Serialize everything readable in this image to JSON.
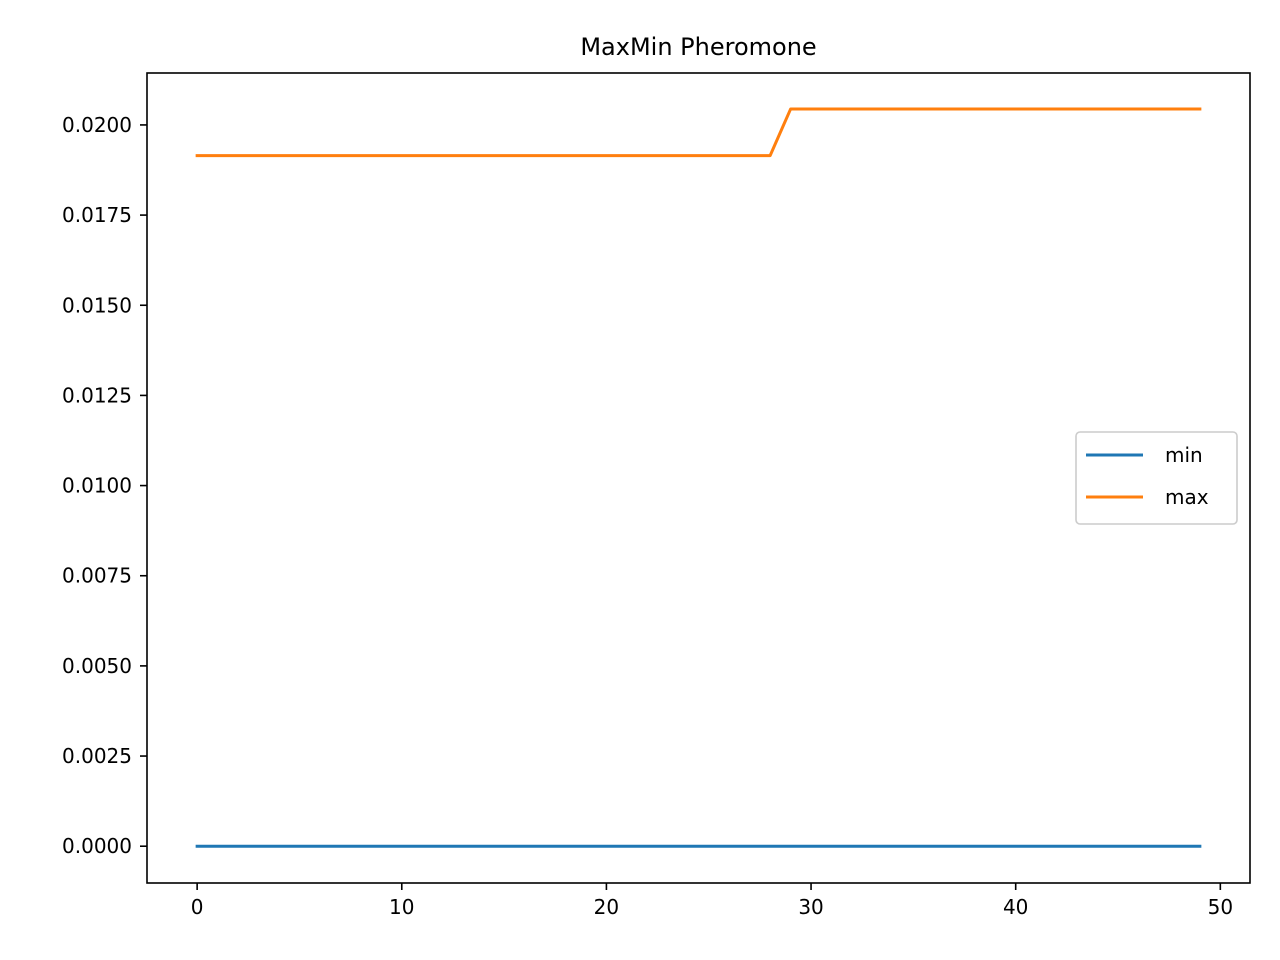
{
  "chart_data": {
    "type": "line",
    "title": "MaxMin Pheromone",
    "xlabel": "",
    "ylabel": "",
    "xlim": [
      -2.45,
      51.45
    ],
    "ylim": [
      -0.00102,
      0.02144
    ],
    "x_ticks": [
      0,
      10,
      20,
      30,
      40,
      50
    ],
    "x_tick_labels": [
      "0",
      "10",
      "20",
      "30",
      "40",
      "50"
    ],
    "y_ticks": [
      0,
      0.0025,
      0.005,
      0.0075,
      0.01,
      0.0125,
      0.015,
      0.0175,
      0.02
    ],
    "y_tick_labels": [
      "0.0000",
      "0.0025",
      "0.0050",
      "0.0075",
      "0.0100",
      "0.0125",
      "0.0150",
      "0.0175",
      "0.0200"
    ],
    "grid": false,
    "legend_position": "center-right",
    "series": [
      {
        "name": "min",
        "color": "#1f77b4",
        "x": [
          0,
          49
        ],
        "y": [
          0.0,
          0.0
        ]
      },
      {
        "name": "max",
        "color": "#ff7f0e",
        "x": [
          0,
          28,
          29,
          49
        ],
        "y": [
          0.01915,
          0.01915,
          0.02044,
          0.02044
        ]
      }
    ]
  }
}
